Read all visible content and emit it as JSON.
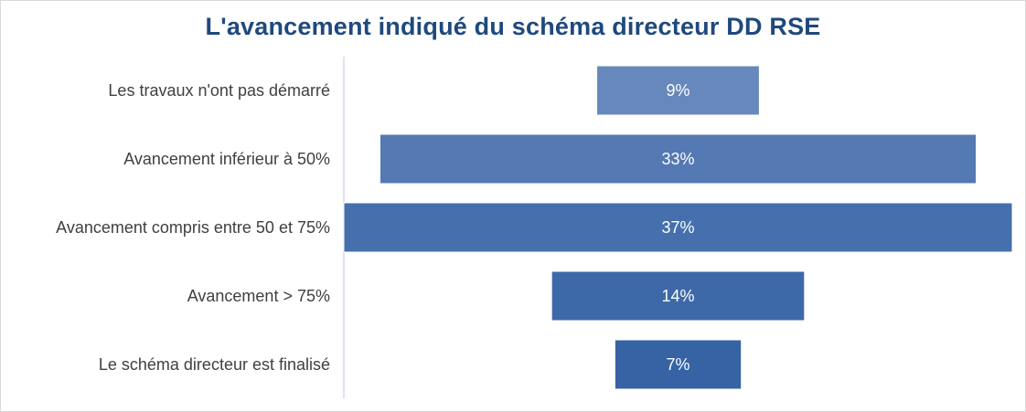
{
  "chart_data": {
    "type": "bar",
    "orientation": "horizontal",
    "style": "funnel",
    "title": "L'avancement indiqué du schéma directeur DD RSE",
    "categories": [
      "Les travaux n'ont pas démarré",
      "Avancement inférieur à 50%",
      "Avancement compris entre 50 et 75%",
      "Avancement > 75%",
      "Le schéma directeur est finalisé"
    ],
    "values": [
      9,
      33,
      37,
      14,
      7
    ],
    "value_labels": [
      "9%",
      "33%",
      "37%",
      "14%",
      "7%"
    ],
    "unit": "%",
    "bar_colors": [
      "#6688bc",
      "#5479b3",
      "#4670ad",
      "#3d69a8",
      "#3563a4"
    ],
    "axis_color": "#d0dced",
    "grid": false,
    "legend": "none"
  }
}
